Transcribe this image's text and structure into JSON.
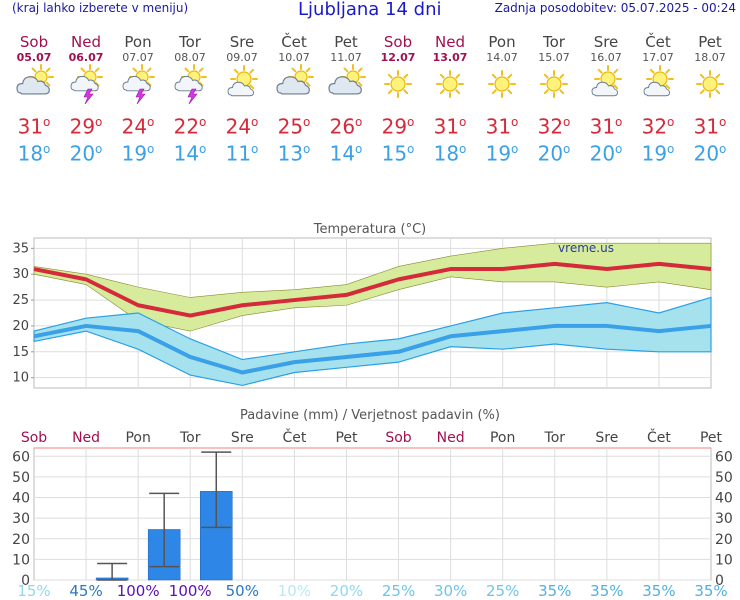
{
  "header": {
    "menu_hint": "(kraj lahko izberete v meniju)",
    "title": "Ljubljana 14 dni",
    "updated": "Zadnja posodobitev: 05.07.2025 - 00:24"
  },
  "days": [
    {
      "name": "Sob",
      "date": "05.07",
      "weekend": true,
      "icon": "partly-cloudy-icon",
      "tmax": "31",
      "tmin": "18"
    },
    {
      "name": "Ned",
      "date": "06.07",
      "weekend": true,
      "icon": "thunderstorm-icon",
      "tmax": "29",
      "tmin": "20"
    },
    {
      "name": "Pon",
      "date": "07.07",
      "weekend": false,
      "icon": "thunderstorm-icon",
      "tmax": "24",
      "tmin": "19"
    },
    {
      "name": "Tor",
      "date": "08.07",
      "weekend": false,
      "icon": "thunderstorm-icon",
      "tmax": "22",
      "tmin": "14"
    },
    {
      "name": "Sre",
      "date": "09.07",
      "weekend": false,
      "icon": "sun-cloud-icon",
      "tmax": "24",
      "tmin": "11"
    },
    {
      "name": "Čet",
      "date": "10.07",
      "weekend": false,
      "icon": "partly-cloudy-icon",
      "tmax": "25",
      "tmin": "13"
    },
    {
      "name": "Pet",
      "date": "11.07",
      "weekend": false,
      "icon": "partly-cloudy-icon",
      "tmax": "26",
      "tmin": "14"
    },
    {
      "name": "Sob",
      "date": "12.07",
      "weekend": true,
      "icon": "sun-icon",
      "tmax": "29",
      "tmin": "15"
    },
    {
      "name": "Ned",
      "date": "13.07",
      "weekend": true,
      "icon": "sun-icon",
      "tmax": "31",
      "tmin": "18"
    },
    {
      "name": "Pon",
      "date": "14.07",
      "weekend": false,
      "icon": "sun-icon",
      "tmax": "31",
      "tmin": "19"
    },
    {
      "name": "Tor",
      "date": "15.07",
      "weekend": false,
      "icon": "sun-icon",
      "tmax": "32",
      "tmin": "20"
    },
    {
      "name": "Sre",
      "date": "16.07",
      "weekend": false,
      "icon": "sun-cloud-icon",
      "tmax": "31",
      "tmin": "20"
    },
    {
      "name": "Čet",
      "date": "17.07",
      "weekend": false,
      "icon": "sun-cloud-icon",
      "tmax": "32",
      "tmin": "19"
    },
    {
      "name": "Pet",
      "date": "18.07",
      "weekend": false,
      "icon": "sun-icon",
      "tmax": "31",
      "tmin": "20"
    }
  ],
  "degree_symbol": "o",
  "colors": {
    "max": "#d42a3a",
    "min": "#3aa0e8",
    "max_band": "#d6ec9c",
    "min_band": "#a6e2ee",
    "bar": "#2e86e6",
    "weekend": "#a01050"
  },
  "chart_data": [
    {
      "type": "line",
      "title": "Temperatura (°C)",
      "watermark": "vreme.us",
      "ylim": [
        8,
        37
      ],
      "yticks": [
        10,
        15,
        20,
        25,
        30,
        35
      ],
      "x": [
        0,
        1,
        2,
        3,
        4,
        5,
        6,
        7,
        8,
        9,
        10,
        11,
        12,
        13
      ],
      "series": [
        {
          "name": "max",
          "values": [
            31,
            29,
            24,
            22,
            24,
            25,
            26,
            29,
            31,
            31,
            32,
            31,
            32,
            31
          ],
          "low": [
            30,
            28,
            21,
            19,
            22,
            23.5,
            24,
            27,
            29.5,
            28.5,
            28.5,
            27.5,
            28.5,
            27
          ],
          "high": [
            31.5,
            30,
            27.5,
            25.5,
            26.5,
            27,
            28,
            31.5,
            33.5,
            35,
            36,
            36,
            36,
            36
          ]
        },
        {
          "name": "min",
          "values": [
            18,
            20,
            19,
            14,
            11,
            13,
            14,
            15,
            18,
            19,
            20,
            20,
            19,
            20
          ],
          "low": [
            17,
            19,
            15.5,
            10.5,
            8.5,
            11,
            12,
            13,
            16,
            15.5,
            16.5,
            15.5,
            15,
            15
          ],
          "high": [
            19,
            21.5,
            22.5,
            17.5,
            13.5,
            15,
            16.5,
            17.5,
            20,
            22.5,
            23.5,
            24.5,
            22.5,
            25.5
          ]
        }
      ]
    },
    {
      "type": "bar",
      "title": "Padavine (mm) / Verjetnost padavin (%)",
      "categories": [
        "Sob",
        "Ned",
        "Pon",
        "Tor",
        "Sre",
        "Čet",
        "Pet",
        "Sob",
        "Ned",
        "Pon",
        "Tor",
        "Sre",
        "Čet",
        "Pet"
      ],
      "weekend": [
        true,
        true,
        false,
        false,
        false,
        false,
        false,
        true,
        true,
        false,
        false,
        false,
        false,
        false
      ],
      "ylim": [
        0,
        64
      ],
      "yticks": [
        0,
        10,
        20,
        30,
        40,
        50,
        60
      ],
      "values": [
        0,
        1,
        24.5,
        43,
        0,
        0,
        0,
        0,
        0,
        0,
        0,
        0,
        0,
        0
      ],
      "err_low": [
        null,
        0,
        6.5,
        25.5,
        null,
        null,
        null,
        null,
        null,
        null,
        null,
        null,
        null,
        null
      ],
      "err_high": [
        null,
        8,
        42,
        62,
        null,
        null,
        null,
        null,
        null,
        null,
        null,
        null,
        null,
        null
      ],
      "probability": [
        "15%",
        "45%",
        "100%",
        "100%",
        "50%",
        "10%",
        "20%",
        "25%",
        "30%",
        "25%",
        "35%",
        "35%",
        "35%",
        "35%"
      ],
      "probability_colors": [
        "#8fd8ee",
        "#2878c8",
        "#5a10b4",
        "#5a10b4",
        "#2878c8",
        "#b8e8f4",
        "#8fd8ee",
        "#6ec4e8",
        "#6ec4e8",
        "#6ec4e8",
        "#50b0e0",
        "#50b0e0",
        "#50b0e0",
        "#50b0e0"
      ]
    }
  ]
}
